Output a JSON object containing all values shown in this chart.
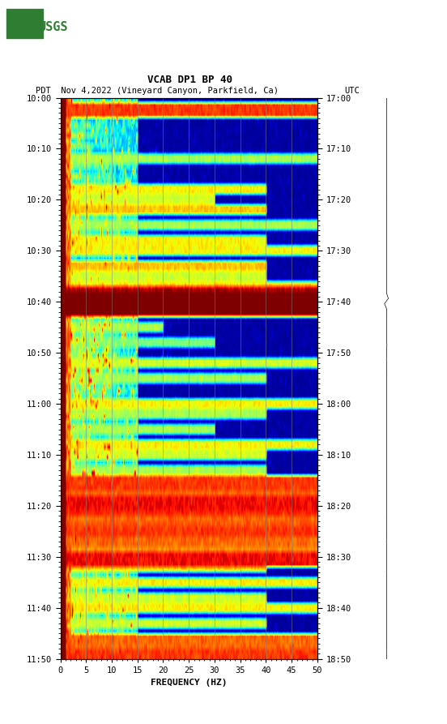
{
  "title_line1": "VCAB DP1 BP 40",
  "title_line2_pdt": "PDT  Nov 4,2022 (Vineyard Canyon, Parkfield, Ca)",
  "title_line2_utc": "UTC",
  "xlabel": "FREQUENCY (HZ)",
  "freq_min": 0,
  "freq_max": 50,
  "left_time_labels": [
    "10:00",
    "10:10",
    "10:20",
    "10:30",
    "10:40",
    "10:50",
    "11:00",
    "11:10",
    "11:20",
    "11:30",
    "11:40",
    "11:50"
  ],
  "right_time_labels": [
    "17:00",
    "17:10",
    "17:20",
    "17:30",
    "17:40",
    "17:50",
    "18:00",
    "18:10",
    "18:20",
    "18:30",
    "18:40",
    "18:50"
  ],
  "freq_ticks": [
    0,
    5,
    10,
    15,
    20,
    25,
    30,
    35,
    40,
    45,
    50
  ],
  "background_color": "#ffffff",
  "colormap": "jet",
  "fig_width": 5.52,
  "fig_height": 8.93,
  "dpi": 100,
  "n_time": 110,
  "n_freq": 250,
  "seed": 7
}
